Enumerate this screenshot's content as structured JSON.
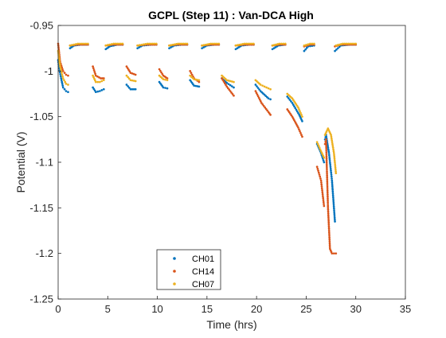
{
  "chart_data": {
    "type": "scatter",
    "title": "GCPL (Step 11) : Van-DCA High",
    "xlabel": "Time (hrs)",
    "ylabel": "Potential (V)",
    "xlim": [
      0,
      35
    ],
    "ylim": [
      -1.25,
      -0.95
    ],
    "x_reversed": false,
    "y_reversed": true,
    "xticks": [
      0,
      5,
      10,
      15,
      20,
      25,
      30,
      35
    ],
    "yticks": [
      -0.95,
      -1,
      -1.05,
      -1.1,
      -1.15,
      -1.2,
      -1.25
    ],
    "xtick_labels": [
      "0",
      "5",
      "10",
      "15",
      "20",
      "25",
      "30",
      "35"
    ],
    "ytick_labels": [
      "-0.95",
      "-1",
      "-1.05",
      "-1.1",
      "-1.15",
      "-1.2",
      "-1.25"
    ],
    "grid": false,
    "legend_position": "bottom-center",
    "series": [
      {
        "name": "CH01",
        "color": "#0072BD",
        "segments": [
          [
            [
              0.0,
              -0.988
            ],
            [
              0.1,
              -0.997
            ],
            [
              0.3,
              -1.008
            ],
            [
              0.5,
              -1.018
            ],
            [
              0.8,
              -1.022
            ],
            [
              1.0,
              -1.023
            ]
          ],
          [
            [
              1.2,
              -0.975
            ],
            [
              1.6,
              -0.972
            ],
            [
              2.3,
              -0.971
            ],
            [
              3.0,
              -0.971
            ]
          ],
          [
            [
              3.5,
              -1.018
            ],
            [
              3.8,
              -1.023
            ],
            [
              4.2,
              -1.022
            ],
            [
              4.6,
              -1.02
            ]
          ],
          [
            [
              4.8,
              -0.976
            ],
            [
              5.2,
              -0.973
            ],
            [
              6.0,
              -0.971
            ],
            [
              6.5,
              -0.971
            ]
          ],
          [
            [
              6.9,
              -1.015
            ],
            [
              7.3,
              -1.02
            ],
            [
              7.8,
              -1.02
            ]
          ],
          [
            [
              8.0,
              -0.975
            ],
            [
              8.5,
              -0.972
            ],
            [
              9.5,
              -0.971
            ],
            [
              9.9,
              -0.971
            ]
          ],
          [
            [
              10.2,
              -1.012
            ],
            [
              10.6,
              -1.018
            ],
            [
              11.0,
              -1.019
            ]
          ],
          [
            [
              11.2,
              -0.975
            ],
            [
              11.7,
              -0.972
            ],
            [
              12.5,
              -0.971
            ],
            [
              13.0,
              -0.971
            ]
          ],
          [
            [
              13.3,
              -1.01
            ],
            [
              13.7,
              -1.016
            ],
            [
              14.2,
              -1.017
            ]
          ],
          [
            [
              14.5,
              -0.975
            ],
            [
              15.0,
              -0.972
            ],
            [
              15.8,
              -0.971
            ],
            [
              16.2,
              -0.971
            ]
          ],
          [
            [
              16.5,
              -1.008
            ],
            [
              17.0,
              -1.013
            ],
            [
              17.7,
              -1.018
            ]
          ],
          [
            [
              17.9,
              -0.976
            ],
            [
              18.5,
              -0.972
            ],
            [
              19.3,
              -0.971
            ],
            [
              19.7,
              -0.971
            ]
          ],
          [
            [
              19.9,
              -1.015
            ],
            [
              20.4,
              -1.022
            ],
            [
              21.2,
              -1.03
            ],
            [
              21.4,
              -1.031
            ]
          ],
          [
            [
              21.6,
              -0.976
            ],
            [
              22.2,
              -0.972
            ],
            [
              22.9,
              -0.971
            ]
          ],
          [
            [
              23.1,
              -1.028
            ],
            [
              23.6,
              -1.035
            ],
            [
              24.3,
              -1.048
            ],
            [
              24.6,
              -1.055
            ]
          ],
          [
            [
              24.8,
              -0.978
            ],
            [
              25.2,
              -0.973
            ],
            [
              25.8,
              -0.972
            ]
          ],
          [
            [
              26.1,
              -1.08
            ],
            [
              26.5,
              -1.09
            ],
            [
              26.8,
              -1.1
            ]
          ],
          [
            [
              26.9,
              -1.075
            ],
            [
              27.0,
              -1.07
            ],
            [
              27.3,
              -1.09
            ],
            [
              27.6,
              -1.12
            ],
            [
              27.9,
              -1.165
            ]
          ],
          [
            [
              27.9,
              -0.978
            ],
            [
              28.5,
              -0.972
            ],
            [
              29.5,
              -0.971
            ],
            [
              30.0,
              -0.971
            ]
          ]
        ]
      },
      {
        "name": "CH14",
        "color": "#D95319",
        "segments": [
          [
            [
              0.0,
              -0.97
            ],
            [
              0.2,
              -0.99
            ],
            [
              0.5,
              -1.0
            ],
            [
              0.8,
              -1.004
            ],
            [
              1.0,
              -1.005
            ]
          ],
          [
            [
              1.2,
              -0.972
            ],
            [
              2.0,
              -0.971
            ],
            [
              3.0,
              -0.971
            ]
          ],
          [
            [
              3.5,
              -0.995
            ],
            [
              3.8,
              -1.005
            ],
            [
              4.3,
              -1.008
            ],
            [
              4.6,
              -1.008
            ]
          ],
          [
            [
              4.8,
              -0.972
            ],
            [
              5.5,
              -0.971
            ],
            [
              6.5,
              -0.971
            ]
          ],
          [
            [
              6.9,
              -0.995
            ],
            [
              7.3,
              -1.002
            ],
            [
              7.8,
              -1.004
            ]
          ],
          [
            [
              8.0,
              -0.972
            ],
            [
              9.0,
              -0.971
            ],
            [
              9.9,
              -0.971
            ]
          ],
          [
            [
              10.2,
              -0.998
            ],
            [
              10.6,
              -1.005
            ],
            [
              11.0,
              -1.008
            ]
          ],
          [
            [
              11.2,
              -0.972
            ],
            [
              12.0,
              -0.971
            ],
            [
              13.0,
              -0.971
            ]
          ],
          [
            [
              13.3,
              -1.0
            ],
            [
              13.7,
              -1.008
            ],
            [
              14.2,
              -1.012
            ]
          ],
          [
            [
              14.5,
              -0.972
            ],
            [
              15.5,
              -0.971
            ],
            [
              16.2,
              -0.971
            ]
          ],
          [
            [
              16.5,
              -1.008
            ],
            [
              17.0,
              -1.017
            ],
            [
              17.7,
              -1.027
            ]
          ],
          [
            [
              17.9,
              -0.972
            ],
            [
              18.8,
              -0.971
            ],
            [
              19.7,
              -0.971
            ]
          ],
          [
            [
              19.9,
              -1.022
            ],
            [
              20.5,
              -1.035
            ],
            [
              21.2,
              -1.045
            ],
            [
              21.4,
              -1.048
            ]
          ],
          [
            [
              21.6,
              -0.972
            ],
            [
              22.3,
              -0.971
            ],
            [
              22.9,
              -0.971
            ]
          ],
          [
            [
              23.1,
              -1.042
            ],
            [
              23.6,
              -1.05
            ],
            [
              24.2,
              -1.062
            ],
            [
              24.6,
              -1.072
            ]
          ],
          [
            [
              24.8,
              -0.973
            ],
            [
              25.4,
              -0.971
            ],
            [
              25.8,
              -0.971
            ]
          ],
          [
            [
              26.1,
              -1.105
            ],
            [
              26.5,
              -1.12
            ],
            [
              26.8,
              -1.148
            ]
          ],
          [
            [
              26.9,
              -1.08
            ],
            [
              27.0,
              -1.075
            ],
            [
              27.2,
              -1.15
            ],
            [
              27.4,
              -1.195
            ],
            [
              27.6,
              -1.2
            ],
            [
              28.0,
              -1.2
            ]
          ],
          [
            [
              27.9,
              -0.973
            ],
            [
              28.5,
              -0.971
            ],
            [
              30.0,
              -0.971
            ]
          ]
        ]
      },
      {
        "name": "CH07",
        "color": "#EDB120",
        "segments": [
          [
            [
              0.0,
              -0.978
            ],
            [
              0.2,
              -0.995
            ],
            [
              0.5,
              -1.008
            ],
            [
              0.8,
              -1.014
            ],
            [
              1.0,
              -1.015
            ]
          ],
          [
            [
              1.2,
              -0.972
            ],
            [
              2.0,
              -0.97
            ],
            [
              3.0,
              -0.97
            ]
          ],
          [
            [
              3.5,
              -1.005
            ],
            [
              3.8,
              -1.012
            ],
            [
              4.2,
              -1.012
            ],
            [
              4.6,
              -1.01
            ]
          ],
          [
            [
              4.8,
              -0.972
            ],
            [
              5.6,
              -0.97
            ],
            [
              6.5,
              -0.97
            ]
          ],
          [
            [
              6.9,
              -1.005
            ],
            [
              7.3,
              -1.01
            ],
            [
              7.8,
              -1.011
            ]
          ],
          [
            [
              8.0,
              -0.972
            ],
            [
              9.0,
              -0.97
            ],
            [
              9.9,
              -0.97
            ]
          ],
          [
            [
              10.2,
              -1.005
            ],
            [
              10.6,
              -1.009
            ],
            [
              11.0,
              -1.01
            ]
          ],
          [
            [
              11.2,
              -0.972
            ],
            [
              12.1,
              -0.97
            ],
            [
              13.0,
              -0.97
            ]
          ],
          [
            [
              13.3,
              -1.005
            ],
            [
              13.7,
              -1.009
            ],
            [
              14.2,
              -1.01
            ]
          ],
          [
            [
              14.5,
              -0.972
            ],
            [
              15.4,
              -0.97
            ],
            [
              16.2,
              -0.97
            ]
          ],
          [
            [
              16.5,
              -1.005
            ],
            [
              17.0,
              -1.01
            ],
            [
              17.7,
              -1.012
            ]
          ],
          [
            [
              17.9,
              -0.972
            ],
            [
              18.8,
              -0.97
            ],
            [
              19.7,
              -0.97
            ]
          ],
          [
            [
              19.9,
              -1.01
            ],
            [
              20.4,
              -1.015
            ],
            [
              21.0,
              -1.018
            ],
            [
              21.4,
              -1.02
            ]
          ],
          [
            [
              21.6,
              -0.972
            ],
            [
              22.3,
              -0.97
            ],
            [
              22.9,
              -0.97
            ]
          ],
          [
            [
              23.1,
              -1.025
            ],
            [
              23.6,
              -1.03
            ],
            [
              24.2,
              -1.04
            ],
            [
              24.6,
              -1.05
            ]
          ],
          [
            [
              24.8,
              -0.972
            ],
            [
              25.4,
              -0.97
            ],
            [
              25.8,
              -0.97
            ]
          ],
          [
            [
              26.1,
              -1.078
            ],
            [
              26.5,
              -1.088
            ],
            [
              26.8,
              -1.095
            ]
          ],
          [
            [
              26.9,
              -1.07
            ],
            [
              27.2,
              -1.063
            ],
            [
              27.5,
              -1.07
            ],
            [
              27.8,
              -1.09
            ],
            [
              28.0,
              -1.112
            ]
          ],
          [
            [
              28.0,
              -0.972
            ],
            [
              28.7,
              -0.97
            ],
            [
              30.0,
              -0.97
            ]
          ]
        ]
      }
    ]
  }
}
